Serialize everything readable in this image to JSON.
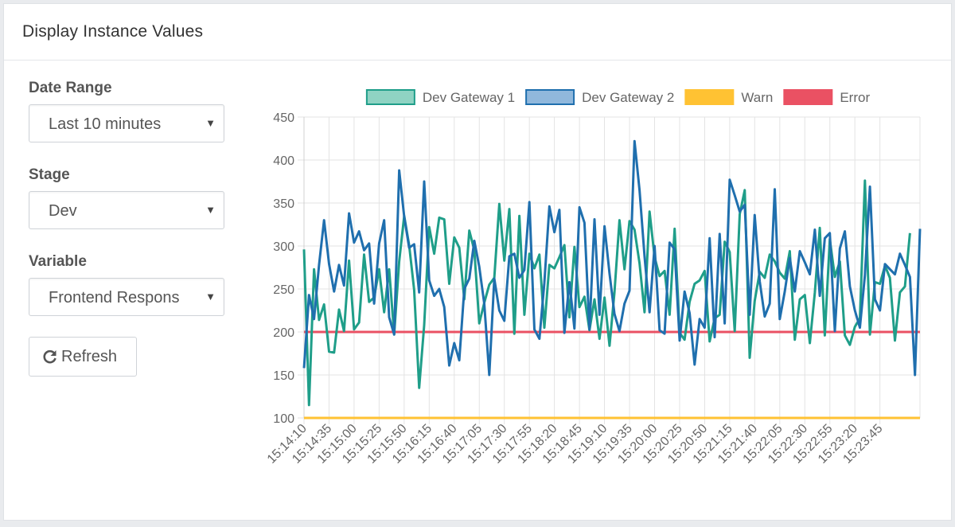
{
  "panel": {
    "title": "Display Instance Values"
  },
  "form": {
    "date_range": {
      "label": "Date Range",
      "value": "Last 10 minutes"
    },
    "stage": {
      "label": "Stage",
      "value": "Dev"
    },
    "variable": {
      "label": "Variable",
      "value": "Frontend Respons"
    },
    "refresh_label": "Refresh"
  },
  "chart_data": {
    "type": "line",
    "ylim": [
      100,
      450
    ],
    "yticks": [
      100,
      150,
      200,
      250,
      300,
      350,
      400,
      450
    ],
    "grid": true,
    "legend_placement": "top",
    "x_tick_labels": [
      "15:14:10",
      "15:14:35",
      "15:15:00",
      "15:15:25",
      "15:15:50",
      "15:16:15",
      "15:16:40",
      "15:17:05",
      "15:17:30",
      "15:17:55",
      "15:18:20",
      "15:18:45",
      "15:19:10",
      "15:19:35",
      "15:20:00",
      "15:20:25",
      "15:20:50",
      "15:21:15",
      "15:21:40",
      "15:22:05",
      "15:22:30",
      "15:22:55",
      "15:23:20",
      "15:23:45"
    ],
    "x_tick_interval_points": 5,
    "series": [
      {
        "name": "Dev Gateway 1",
        "color": "#1f9e89",
        "fill": "#8fd3c3",
        "values": [
          296,
          115,
          273,
          214,
          232,
          177,
          176,
          226,
          201,
          283,
          203,
          211,
          290,
          235,
          240,
          273,
          223,
          273,
          197,
          282,
          335,
          301,
          249,
          135,
          208,
          322,
          291,
          333,
          331,
          256,
          310,
          298,
          238,
          318,
          295,
          210,
          234,
          255,
          263,
          349,
          283,
          343,
          198,
          335,
          220,
          291,
          274,
          290,
          205,
          278,
          274,
          287,
          301,
          217,
          299,
          229,
          241,
          202,
          238,
          192,
          240,
          184,
          246,
          330,
          273,
          329,
          319,
          280,
          223,
          340,
          287,
          265,
          271,
          220,
          320,
          199,
          191,
          235,
          256,
          260,
          271,
          189,
          216,
          220,
          305,
          293,
          201,
          337,
          365,
          170,
          236,
          270,
          263,
          290,
          282,
          269,
          262,
          294,
          191,
          238,
          243,
          187,
          246,
          321,
          196,
          308,
          264,
          282,
          196,
          185,
          206,
          216,
          376,
          197,
          258,
          256,
          277,
          263,
          190,
          246,
          253,
          315
        ]
      },
      {
        "name": "Dev Gateway 2",
        "color": "#1f6fae",
        "fill": "#90b8dc",
        "values": [
          158,
          243,
          215,
          278,
          330,
          279,
          247,
          278,
          254,
          338,
          304,
          317,
          295,
          303,
          233,
          303,
          330,
          217,
          197,
          388,
          334,
          298,
          302,
          246,
          375,
          260,
          242,
          250,
          229,
          161,
          187,
          167,
          250,
          262,
          306,
          276,
          233,
          150,
          262,
          225,
          213,
          288,
          291,
          263,
          272,
          351,
          203,
          192,
          257,
          346,
          316,
          342,
          199,
          258,
          204,
          345,
          327,
          203,
          331,
          220,
          323,
          268,
          221,
          201,
          233,
          248,
          422,
          365,
          288,
          223,
          300,
          202,
          198,
          304,
          296,
          190,
          247,
          222,
          162,
          215,
          205,
          309,
          194,
          314,
          210,
          377,
          359,
          340,
          348,
          220,
          336,
          259,
          218,
          233,
          366,
          215,
          247,
          286,
          247,
          294,
          281,
          267,
          319,
          242,
          309,
          315,
          201,
          297,
          317,
          253,
          225,
          205,
          266,
          369,
          238,
          225,
          279,
          273,
          267,
          291,
          278,
          264,
          150,
          320
        ]
      },
      {
        "name": "Warn",
        "color": "#ffc233",
        "fill": "#ffc233",
        "constant": 100
      },
      {
        "name": "Error",
        "color": "#ea5163",
        "fill": "#ea5163",
        "constant": 200
      }
    ]
  }
}
